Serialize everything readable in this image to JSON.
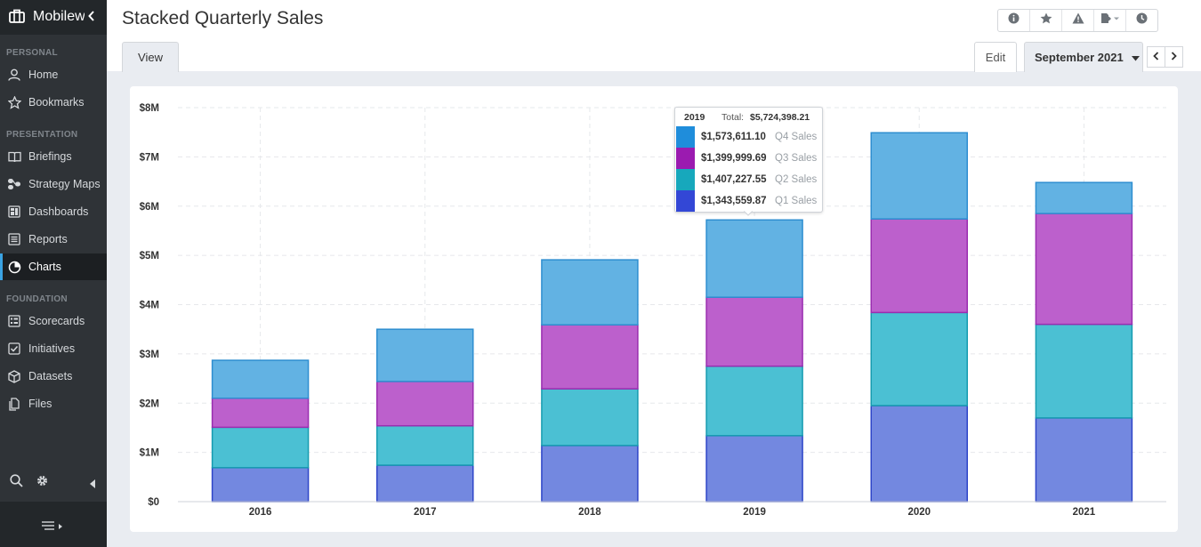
{
  "app": {
    "name": "Mobilew"
  },
  "sidebar": {
    "sections": {
      "personal": "PERSONAL",
      "presentation": "PRESENTATION",
      "foundation": "FOUNDATION"
    },
    "items": [
      {
        "label": "Home",
        "icon": "user-icon"
      },
      {
        "label": "Bookmarks",
        "icon": "star-icon"
      },
      {
        "label": "Briefings",
        "icon": "book-icon"
      },
      {
        "label": "Strategy Maps",
        "icon": "strategy-map-icon"
      },
      {
        "label": "Dashboards",
        "icon": "dashboard-icon"
      },
      {
        "label": "Reports",
        "icon": "report-icon"
      },
      {
        "label": "Charts",
        "icon": "pie-chart-icon",
        "active": true
      },
      {
        "label": "Scorecards",
        "icon": "scorecard-icon"
      },
      {
        "label": "Initiatives",
        "icon": "checkbox-icon"
      },
      {
        "label": "Datasets",
        "icon": "cube-icon"
      },
      {
        "label": "Files",
        "icon": "files-icon"
      }
    ]
  },
  "page": {
    "title": "Stacked Quarterly Sales",
    "tab_view": "View",
    "edit_label": "Edit",
    "period": "September 2021"
  },
  "toolbar": {
    "icons": [
      "info-icon",
      "star-icon",
      "warning-icon",
      "export-icon",
      "history-icon"
    ]
  },
  "colors": {
    "q1": "#7388e0",
    "q2": "#4bc0d3",
    "q3": "#bc60cc",
    "q4": "#62b2e3",
    "q1_border": "#2e45c8",
    "q2_border": "#169bb0",
    "q3_border": "#9a2db0",
    "q4_border": "#2e8ed0"
  },
  "tooltip": {
    "year": "2019",
    "total_label": "Total:",
    "total": "$5,724,398.21",
    "rows": [
      {
        "value": "$1,573,611.10",
        "name": "Q4 Sales",
        "color": "#1f8ddb"
      },
      {
        "value": "$1,399,999.69",
        "name": "Q3 Sales",
        "color": "#9b1bb0"
      },
      {
        "value": "$1,407,227.55",
        "name": "Q2 Sales",
        "color": "#17a8bc"
      },
      {
        "value": "$1,343,559.87",
        "name": "Q1 Sales",
        "color": "#3347d6"
      }
    ]
  },
  "chart_data": {
    "type": "bar",
    "stacked": true,
    "categories": [
      "2016",
      "2017",
      "2018",
      "2019",
      "2020",
      "2021"
    ],
    "series": [
      {
        "name": "Q1 Sales",
        "values": [
          0.69,
          0.74,
          1.14,
          1.34,
          1.95,
          1.7
        ]
      },
      {
        "name": "Q2 Sales",
        "values": [
          0.82,
          0.8,
          1.15,
          1.41,
          1.89,
          1.9
        ]
      },
      {
        "name": "Q3 Sales",
        "values": [
          0.59,
          0.9,
          1.3,
          1.4,
          1.9,
          2.25
        ]
      },
      {
        "name": "Q4 Sales",
        "values": [
          0.77,
          1.06,
          1.32,
          1.57,
          1.75,
          0.63
        ]
      }
    ],
    "y_ticks": [
      "$0",
      "$1M",
      "$2M",
      "$3M",
      "$4M",
      "$5M",
      "$6M",
      "$7M",
      "$8M"
    ],
    "ylim": [
      0,
      8
    ],
    "y_unit": "millions USD",
    "grid": true
  }
}
